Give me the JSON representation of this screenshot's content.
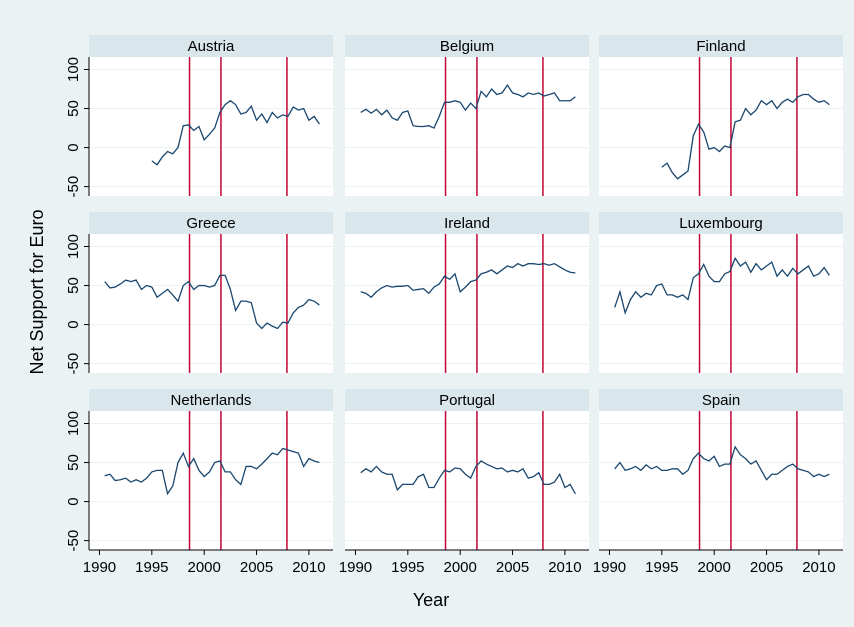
{
  "chart_data": {
    "type": "line",
    "xlabel": "Year",
    "ylabel": "Net Support for Euro",
    "x": [
      1990.5,
      1991,
      1991.5,
      1992,
      1992.5,
      1993,
      1993.5,
      1994,
      1994.5,
      1995,
      1995.5,
      1996,
      1996.5,
      1997,
      1997.5,
      1998,
      1998.5,
      1999,
      1999.5,
      2000,
      2000.5,
      2001,
      2001.5,
      2002,
      2002.5,
      2003,
      2003.5,
      2004,
      2004.5,
      2005,
      2005.5,
      2006,
      2006.5,
      2007,
      2007.5,
      2008,
      2008.5,
      2009,
      2009.5,
      2010,
      2010.5,
      2011
    ],
    "xlim": [
      1989,
      2012.3
    ],
    "xticks": [
      1990,
      1995,
      2000,
      2005,
      2010
    ],
    "ylim": [
      -62,
      116
    ],
    "yticks": [
      -50,
      0,
      50,
      100
    ],
    "grid": true,
    "reference_lines": [
      1998.6,
      2001.6,
      2007.9
    ],
    "reference_color": "#c10534",
    "series": [
      {
        "name": "Austria",
        "color": "#1a476f",
        "values": [
          null,
          null,
          null,
          null,
          null,
          null,
          null,
          null,
          null,
          -17,
          -22,
          -12,
          -5,
          -8,
          0,
          28,
          29,
          22,
          27,
          10,
          17,
          25,
          45,
          55,
          60,
          55,
          43,
          45,
          53,
          35,
          43,
          32,
          45,
          38,
          42,
          40,
          52,
          48,
          50,
          35,
          40,
          30
        ]
      },
      {
        "name": "Belgium",
        "color": "#1a476f",
        "values": [
          45,
          49,
          44,
          49,
          42,
          48,
          38,
          35,
          45,
          47,
          28,
          27,
          27,
          28,
          25,
          40,
          58,
          58,
          60,
          58,
          48,
          57,
          50,
          72,
          65,
          75,
          68,
          70,
          80,
          70,
          68,
          65,
          70,
          68,
          70,
          66,
          68,
          70,
          60,
          60,
          60,
          65
        ]
      },
      {
        "name": "Finland",
        "color": "#1a476f",
        "values": [
          null,
          null,
          null,
          null,
          null,
          null,
          null,
          null,
          null,
          -25,
          -20,
          -32,
          -40,
          -35,
          -30,
          15,
          30,
          20,
          -2,
          0,
          -5,
          2,
          0,
          33,
          35,
          50,
          42,
          48,
          60,
          55,
          60,
          50,
          58,
          62,
          58,
          65,
          68,
          68,
          62,
          58,
          60,
          55
        ]
      },
      {
        "name": "Greece",
        "color": "#1a476f",
        "values": [
          55,
          47,
          48,
          52,
          57,
          55,
          57,
          45,
          50,
          48,
          35,
          40,
          45,
          38,
          30,
          50,
          55,
          45,
          50,
          50,
          48,
          50,
          63,
          63,
          45,
          18,
          30,
          30,
          28,
          2,
          -5,
          2,
          -2,
          -5,
          3,
          2,
          15,
          22,
          25,
          32,
          30,
          25
        ]
      },
      {
        "name": "Ireland",
        "color": "#1a476f",
        "values": [
          42,
          40,
          35,
          42,
          47,
          50,
          48,
          49,
          49,
          50,
          44,
          45,
          46,
          40,
          48,
          52,
          62,
          58,
          65,
          42,
          48,
          55,
          57,
          65,
          67,
          70,
          65,
          70,
          75,
          73,
          78,
          75,
          78,
          78,
          77,
          78,
          76,
          78,
          74,
          70,
          67,
          66
        ]
      },
      {
        "name": "Luxembourg",
        "color": "#1a476f",
        "values": [
          22,
          42,
          15,
          32,
          42,
          35,
          40,
          38,
          50,
          52,
          38,
          38,
          35,
          38,
          32,
          60,
          65,
          77,
          62,
          55,
          55,
          65,
          68,
          85,
          75,
          80,
          67,
          78,
          70,
          75,
          80,
          62,
          70,
          62,
          72,
          65,
          70,
          75,
          62,
          65,
          73,
          63
        ]
      },
      {
        "name": "Netherlands",
        "color": "#1a476f",
        "values": [
          33,
          35,
          27,
          28,
          30,
          25,
          28,
          25,
          30,
          38,
          40,
          40,
          10,
          20,
          50,
          62,
          45,
          55,
          40,
          32,
          38,
          50,
          52,
          38,
          38,
          28,
          22,
          45,
          45,
          42,
          48,
          55,
          62,
          60,
          68,
          66,
          64,
          62,
          45,
          55,
          52,
          50
        ]
      },
      {
        "name": "Portugal",
        "color": "#1a476f",
        "values": [
          37,
          42,
          38,
          45,
          38,
          35,
          35,
          15,
          22,
          22,
          22,
          32,
          35,
          18,
          18,
          30,
          40,
          38,
          43,
          42,
          35,
          30,
          45,
          52,
          48,
          45,
          42,
          43,
          38,
          40,
          38,
          42,
          30,
          32,
          37,
          22,
          22,
          25,
          35,
          18,
          22,
          10
        ]
      },
      {
        "name": "Spain",
        "color": "#1a476f",
        "values": [
          42,
          50,
          40,
          42,
          45,
          40,
          47,
          42,
          45,
          40,
          40,
          42,
          42,
          35,
          40,
          55,
          62,
          55,
          52,
          58,
          45,
          48,
          48,
          70,
          60,
          55,
          48,
          52,
          40,
          28,
          35,
          35,
          40,
          45,
          48,
          42,
          40,
          38,
          32,
          35,
          32,
          35
        ]
      }
    ]
  }
}
